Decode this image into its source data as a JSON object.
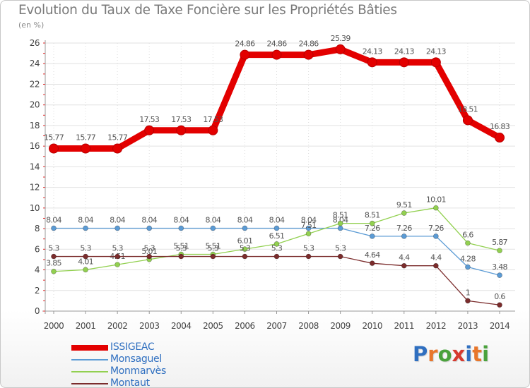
{
  "header": {
    "title": "Evolution du Taux de Taxe Foncière sur les Propriétés Bâties",
    "subtitle": "(en %)"
  },
  "logo": {
    "text": "Proxiti",
    "letter_colors": [
      "#2f6fc0",
      "#e8762b",
      "#4aa23c",
      "#d63a2f",
      "#2f6fc0",
      "#e8762b",
      "#4aa23c"
    ]
  },
  "chart_data": {
    "type": "line",
    "title": "Evolution du Taux de Taxe Foncière sur les Propriétés Bâties",
    "ylabel": "(en %)",
    "xlabel": "",
    "ylim": [
      0,
      26
    ],
    "yticks": [
      0,
      2,
      4,
      6,
      8,
      10,
      12,
      14,
      16,
      18,
      20,
      22,
      24,
      26
    ],
    "x": [
      "2000",
      "2001",
      "2002",
      "2003",
      "2004",
      "2005",
      "2006",
      "2007",
      "2008",
      "2009",
      "2010",
      "2011",
      "2012",
      "2013",
      "2014"
    ],
    "legend_position": "bottom-left",
    "series": [
      {
        "name": "ISSIGEAC",
        "color": "#e30000",
        "emphasis": true,
        "values": [
          15.77,
          15.77,
          15.77,
          17.53,
          17.53,
          17.53,
          24.86,
          24.86,
          24.86,
          25.39,
          24.13,
          24.13,
          24.13,
          18.51,
          16.83
        ],
        "labels": [
          "15.77",
          "15.77",
          "15.77",
          "17.53",
          "17.53",
          "17.53",
          "24.86",
          "24.86",
          "24.86",
          "25.39",
          "24.13",
          "24.13",
          "24.13",
          "18.51",
          "16.83"
        ]
      },
      {
        "name": "Monsaguel",
        "color": "#5b9bd5",
        "emphasis": false,
        "values": [
          8.04,
          8.04,
          8.04,
          8.04,
          8.04,
          8.04,
          8.04,
          8.04,
          8.04,
          8.04,
          7.26,
          7.26,
          7.26,
          4.28,
          3.48
        ],
        "labels": [
          "8.04",
          "8.04",
          "8.04",
          "8.04",
          "8.04",
          "8.04",
          "8.04",
          "8.04",
          "8.04",
          "8.04",
          "7.26",
          "7.26",
          "7.26",
          "4.28",
          "3.48"
        ]
      },
      {
        "name": "Monmarvès",
        "color": "#92d050",
        "emphasis": false,
        "values": [
          3.85,
          4.01,
          4.51,
          5.01,
          5.51,
          5.51,
          6.01,
          6.51,
          7.51,
          8.51,
          8.51,
          9.51,
          10.01,
          6.6,
          5.87
        ],
        "labels": [
          "3.85",
          "4.01",
          "4.51",
          "5.01",
          "5.51",
          "5.51",
          "6.01",
          "6.51",
          "7.51",
          "8.51",
          "8.51",
          "9.51",
          "10.01",
          "6.6",
          "5.87"
        ]
      },
      {
        "name": "Montaut",
        "color": "#7b2c2c",
        "emphasis": false,
        "values": [
          5.3,
          5.3,
          5.3,
          5.3,
          5.3,
          5.3,
          5.3,
          5.3,
          5.3,
          5.3,
          4.64,
          4.4,
          4.4,
          1.0,
          0.6
        ],
        "labels": [
          "5.3",
          "5.3",
          "5.3",
          "5.3",
          "5.3",
          "5.3",
          "5.3",
          "5.3",
          "5.3",
          "5.3",
          "4.64",
          "4.4",
          "4.4",
          "1",
          "0.6"
        ]
      }
    ]
  }
}
